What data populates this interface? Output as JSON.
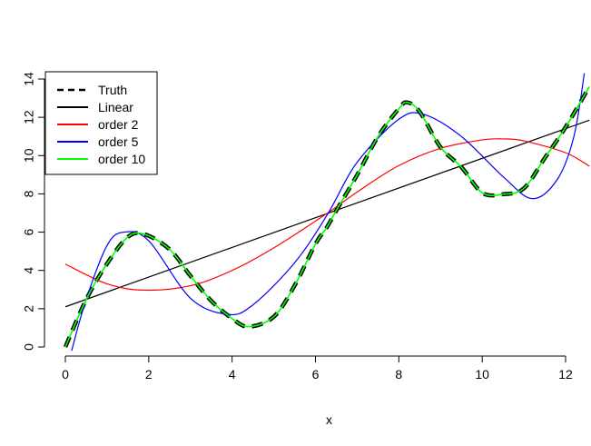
{
  "chart_data": {
    "type": "line",
    "title": "",
    "xlabel": "x",
    "ylabel": "",
    "xlim": [
      0,
      12.57
    ],
    "ylim": [
      0,
      14
    ],
    "x_ticks": [
      0,
      2,
      4,
      6,
      8,
      10,
      12
    ],
    "y_ticks": [
      0,
      2,
      4,
      6,
      8,
      10,
      12,
      14
    ],
    "legend_position": "top-left",
    "grid": false,
    "series": [
      {
        "name": "Truth",
        "color": "#000000",
        "dash": "dashed",
        "x": [
          0.0,
          0.5,
          1.0,
          1.5,
          1.9,
          2.5,
          3.0,
          3.5,
          4.0,
          4.4,
          5.0,
          5.5,
          6.0,
          6.28,
          6.5,
          7.0,
          7.5,
          8.0,
          8.2,
          8.5,
          9.0,
          9.5,
          10.0,
          10.5,
          11.0,
          11.5,
          12.0,
          12.57
        ],
        "y": [
          0.0,
          2.48,
          4.35,
          5.75,
          5.89,
          5.1,
          3.72,
          2.41,
          1.49,
          1.06,
          1.58,
          3.21,
          5.38,
          6.28,
          7.13,
          8.99,
          10.99,
          12.45,
          12.78,
          12.29,
          10.44,
          9.4,
          8.06,
          7.98,
          8.29,
          9.87,
          11.48,
          13.6
        ]
      },
      {
        "name": "Linear",
        "color": "#000000",
        "dash": "solid",
        "x": [
          0,
          12.57
        ],
        "y": [
          2.1,
          11.85
        ]
      },
      {
        "name": "order 2",
        "color": "#ff0000",
        "dash": "solid",
        "x": [
          0.0,
          1.0,
          1.9,
          3.0,
          4.0,
          5.0,
          6.28,
          7.0,
          8.0,
          9.0,
          10.0,
          10.5,
          11.0,
          12.0,
          12.57
        ],
        "y": [
          4.33,
          3.3,
          2.97,
          3.2,
          4.0,
          5.18,
          6.98,
          8.1,
          9.48,
          10.38,
          10.82,
          10.87,
          10.77,
          10.15,
          9.45
        ]
      },
      {
        "name": "order 5",
        "color": "#0000ff",
        "dash": "solid",
        "x": [
          0.15,
          0.5,
          1.0,
          1.4,
          2.0,
          3.0,
          3.9,
          4.5,
          5.5,
          6.28,
          7.0,
          8.0,
          8.6,
          9.5,
          10.5,
          11.2,
          11.8,
          12.2,
          12.45
        ],
        "y": [
          -0.2,
          2.5,
          5.3,
          6.0,
          5.55,
          2.55,
          1.7,
          2.2,
          4.4,
          6.9,
          9.65,
          11.9,
          12.15,
          11.0,
          8.9,
          7.75,
          8.75,
          11.0,
          14.3
        ]
      },
      {
        "name": "order 10",
        "color": "#00ff00",
        "dash": "solid",
        "x": [
          0.0,
          0.5,
          1.0,
          1.5,
          1.9,
          2.5,
          3.0,
          3.5,
          4.0,
          4.4,
          5.0,
          5.5,
          6.0,
          6.28,
          6.5,
          7.0,
          7.5,
          8.0,
          8.2,
          8.5,
          9.0,
          9.5,
          10.0,
          10.5,
          11.0,
          11.5,
          12.0,
          12.57
        ],
        "y": [
          0.0,
          2.48,
          4.35,
          5.75,
          5.89,
          5.1,
          3.72,
          2.41,
          1.49,
          1.06,
          1.58,
          3.21,
          5.38,
          6.28,
          7.13,
          8.99,
          10.99,
          12.45,
          12.78,
          12.29,
          10.44,
          9.4,
          8.06,
          7.98,
          8.29,
          9.87,
          11.48,
          13.6
        ]
      }
    ]
  }
}
